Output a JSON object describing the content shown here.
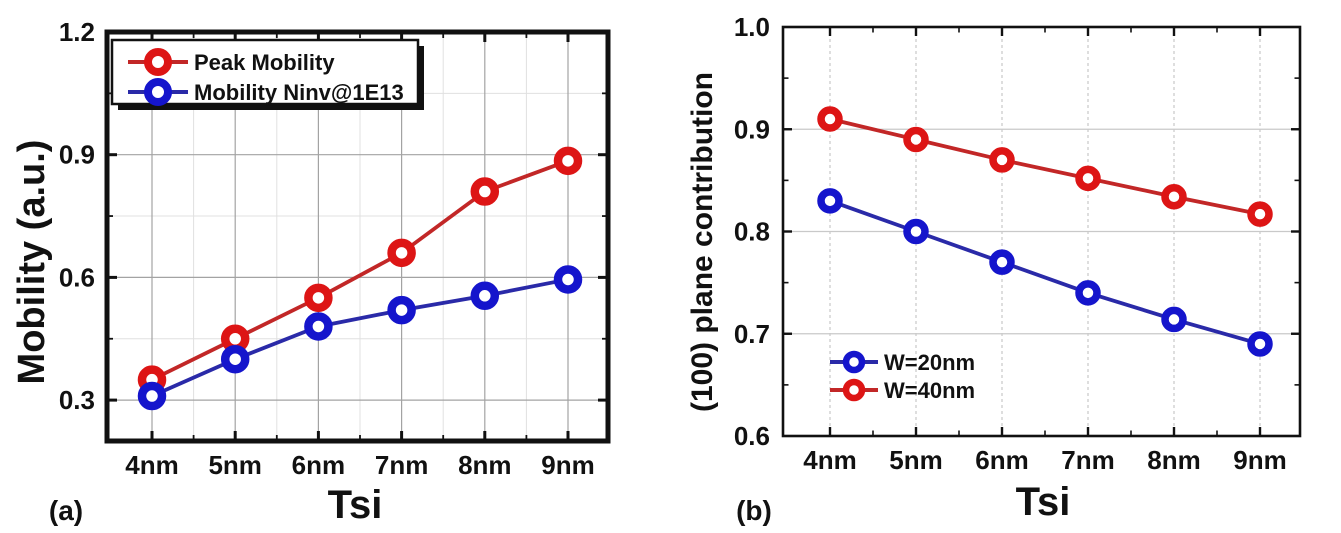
{
  "page": {
    "background": "#ffffff",
    "text_color": "#111111"
  },
  "chart_data": [
    {
      "type": "line",
      "panel_label": "(a)",
      "title": "",
      "xlabel": "Tsi",
      "ylabel": "Mobility (a.u.)",
      "categories": [
        "4nm",
        "5nm",
        "6nm",
        "7nm",
        "8nm",
        "9nm"
      ],
      "ylim": [
        0.2,
        1.2
      ],
      "yticks": [
        0.3,
        0.6,
        0.9,
        1.2
      ],
      "ytick_labels": [
        "0.3",
        "0.6",
        "0.9",
        "1.2"
      ],
      "grid": "major and minor gridlines on",
      "legend_position": "top-left boxed with drop shadow",
      "series": [
        {
          "name": "Peak Mobility",
          "marker": "open-circle",
          "color": "#dd1515",
          "line_color": "#c22727",
          "values": [
            0.35,
            0.45,
            0.55,
            0.66,
            0.81,
            0.885
          ]
        },
        {
          "name": "Mobility Ninv@1E13",
          "marker": "open-circle",
          "color": "#1515cc",
          "line_color": "#2a2aa8",
          "values": [
            0.31,
            0.4,
            0.48,
            0.52,
            0.555,
            0.595
          ]
        }
      ]
    },
    {
      "type": "line",
      "panel_label": "(b)",
      "title": "",
      "xlabel": "Tsi",
      "ylabel": "(100) plane contribution",
      "categories": [
        "4nm",
        "5nm",
        "6nm",
        "7nm",
        "8nm",
        "9nm"
      ],
      "ylim": [
        0.6,
        1.0
      ],
      "yticks": [
        0.6,
        0.7,
        0.8,
        0.9,
        1.0
      ],
      "ytick_labels": [
        "0.6",
        "0.7",
        "0.8",
        "0.9",
        "1.0"
      ],
      "grid": "major gridlines on",
      "legend_position": "bottom-left unboxed",
      "series": [
        {
          "name": "W=20nm",
          "marker": "open-circle",
          "color": "#1515cc",
          "line_color": "#2a2aa8",
          "values": [
            0.83,
            0.8,
            0.77,
            0.74,
            0.714,
            0.69
          ]
        },
        {
          "name": "W=40nm",
          "marker": "open-circle",
          "color": "#dd1515",
          "line_color": "#c22727",
          "values": [
            0.91,
            0.89,
            0.87,
            0.852,
            0.834,
            0.817
          ]
        }
      ]
    }
  ]
}
